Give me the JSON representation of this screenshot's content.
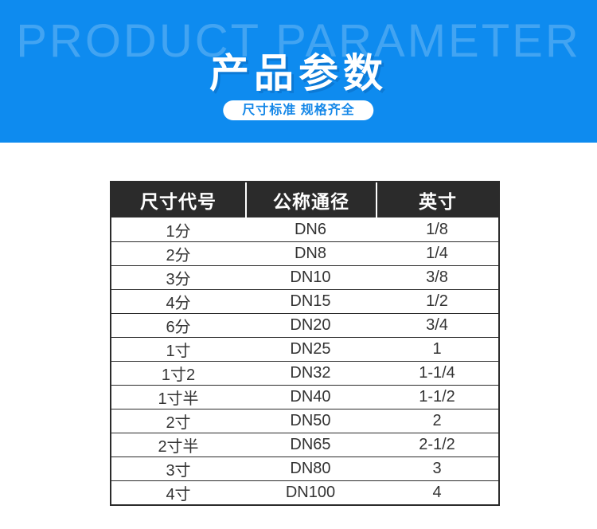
{
  "banner": {
    "watermark": "PRODUCT PARAMETER",
    "title": "产品参数",
    "subtitle": "尺寸标准 规格齐全",
    "colors": {
      "background": "#0E8BEF",
      "subtitle_text": "#1487E8"
    }
  },
  "table": {
    "headers": [
      "尺寸代号",
      "公称通径",
      "英寸"
    ],
    "column_names": [
      "size-code",
      "nominal-diameter",
      "inch"
    ],
    "rows": [
      [
        "1分",
        "DN6",
        "1/8"
      ],
      [
        "2分",
        "DN8",
        "1/4"
      ],
      [
        "3分",
        "DN10",
        "3/8"
      ],
      [
        "4分",
        "DN15",
        "1/2"
      ],
      [
        "6分",
        "DN20",
        "3/4"
      ],
      [
        "1寸",
        "DN25",
        "1"
      ],
      [
        "1寸2",
        "DN32",
        "1-1/4"
      ],
      [
        "1寸半",
        "DN40",
        "1-1/2"
      ],
      [
        "2寸",
        "DN50",
        "2"
      ],
      [
        "2寸半",
        "DN65",
        "2-1/2"
      ],
      [
        "3寸",
        "DN80",
        "3"
      ],
      [
        "4寸",
        "DN100",
        "4"
      ]
    ],
    "colors": {
      "header_bg": "#2B2B2B",
      "header_text": "#FFFFFF",
      "body_text": "#333333",
      "border": "#2B2B2B"
    }
  }
}
